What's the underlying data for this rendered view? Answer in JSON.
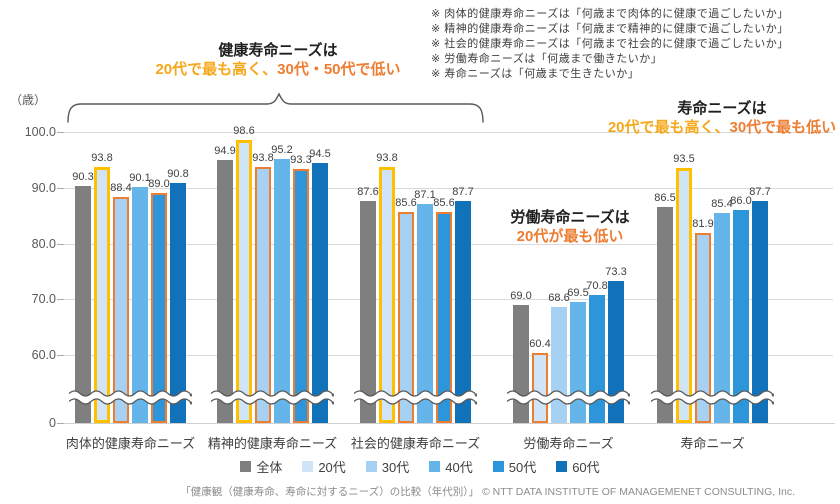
{
  "notes": [
    "※ 肉体的健康寿命ニーズは「何歳まで肉体的に健康で過ごしたいか」",
    "※ 精神的健康寿命ニーズは「何歳まで精神的に健康で過ごしたいか」",
    "※ 社会的健康寿命ニーズは「何歳まで社会的に健康で過ごしたいか」",
    "※ 労働寿命ニーズは「何歳まで働きたいか」",
    "※ 寿命ニーズは「何歳まで生きたいか」"
  ],
  "annotations": {
    "health": {
      "title": "健康寿命ニーズは",
      "sub_gold": "20代で最も高く、",
      "sub_orange": "30代・50代で低い"
    },
    "work": {
      "title": "労働寿命ニーズは",
      "sub_orange": "20代が最も低い"
    },
    "life": {
      "title": "寿命ニーズは",
      "sub_gold": "20代で最も高く、",
      "sub_orange": "30代で最も低い"
    }
  },
  "axis": {
    "unit_label": "（歳）",
    "ticks": [
      "100.0",
      "90.0",
      "80.0",
      "70.0",
      "60.0",
      "0"
    ]
  },
  "chart_data": {
    "type": "bar",
    "title": "健康観（健康寿命、寿命に対するニーズ）の比較（年代別）",
    "y_unit": "歳",
    "ylim_shown": [
      60,
      100
    ],
    "axis_break": true,
    "grid": true,
    "legend_position": "bottom",
    "categories": [
      "肉体的健康寿命ニーズ",
      "精神的健康寿命ニーズ",
      "社会的健康寿命ニーズ",
      "労働寿命ニーズ",
      "寿命ニーズ"
    ],
    "series": [
      {
        "name": "全体",
        "color": "#7f7f7f",
        "values": [
          90.3,
          94.9,
          87.6,
          69.0,
          86.5
        ]
      },
      {
        "name": "20代",
        "color": "#cfe4f6",
        "values": [
          93.8,
          98.6,
          93.8,
          60.4,
          93.5
        ]
      },
      {
        "name": "30代",
        "color": "#a6d1f2",
        "values": [
          88.4,
          93.8,
          85.6,
          68.6,
          81.9
        ]
      },
      {
        "name": "40代",
        "color": "#66b5ea",
        "values": [
          90.1,
          95.2,
          87.1,
          69.5,
          85.4
        ]
      },
      {
        "name": "50代",
        "color": "#2d96db",
        "values": [
          89.0,
          93.3,
          85.6,
          70.8,
          86.0
        ]
      },
      {
        "name": "60代",
        "color": "#1172ba",
        "values": [
          90.8,
          94.5,
          87.7,
          73.3,
          87.7
        ]
      }
    ],
    "highlights": [
      {
        "category": 0,
        "series": 1,
        "style": "gold"
      },
      {
        "category": 0,
        "series": 2,
        "style": "orange"
      },
      {
        "category": 0,
        "series": 4,
        "style": "orange"
      },
      {
        "category": 1,
        "series": 1,
        "style": "gold"
      },
      {
        "category": 1,
        "series": 2,
        "style": "orange"
      },
      {
        "category": 1,
        "series": 4,
        "style": "orange"
      },
      {
        "category": 2,
        "series": 1,
        "style": "gold"
      },
      {
        "category": 2,
        "series": 2,
        "style": "orange"
      },
      {
        "category": 2,
        "series": 4,
        "style": "orange"
      },
      {
        "category": 3,
        "series": 1,
        "style": "orange"
      },
      {
        "category": 4,
        "series": 1,
        "style": "gold"
      },
      {
        "category": 4,
        "series": 2,
        "style": "orange"
      }
    ]
  },
  "colors": {
    "gold": "#FFC000",
    "gold_text": "#F6A81C",
    "orange": "#ED7D31"
  },
  "footer": "「健康観（健康寿命、寿命に対するニーズ）の比較（年代別）」 © NTT DATA INSTITUTE OF MANAGEMENET CONSULTING, Inc."
}
